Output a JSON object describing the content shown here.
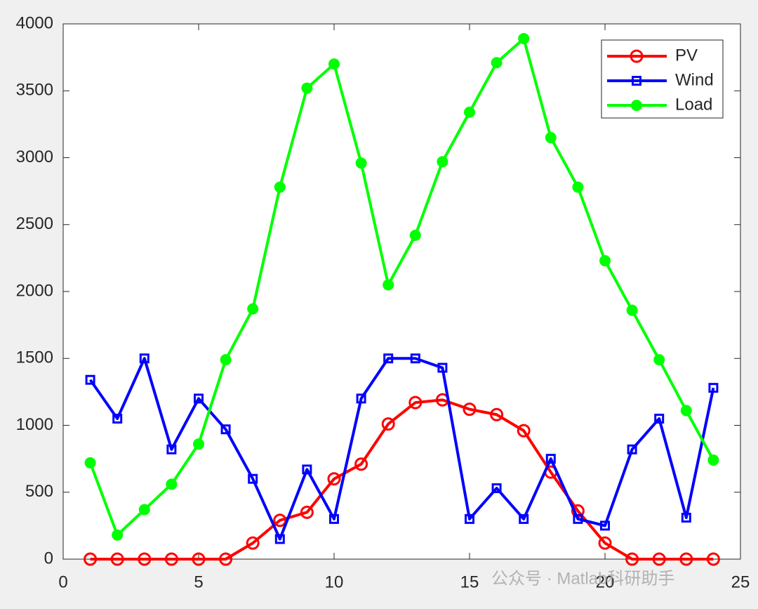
{
  "chart_data": {
    "type": "line",
    "x": [
      1,
      2,
      3,
      4,
      5,
      6,
      7,
      8,
      9,
      10,
      11,
      12,
      13,
      14,
      15,
      16,
      17,
      18,
      19,
      20,
      21,
      22,
      23,
      24
    ],
    "series": [
      {
        "name": "PV",
        "color": "#ff0000",
        "marker": "circle-open",
        "values": [
          0,
          0,
          0,
          0,
          0,
          0,
          120,
          290,
          350,
          600,
          710,
          1010,
          1170,
          1190,
          1120,
          1080,
          960,
          650,
          360,
          120,
          0,
          0,
          0,
          0
        ]
      },
      {
        "name": "Wind",
        "color": "#0000ff",
        "marker": "square-open",
        "values": [
          1340,
          1050,
          1500,
          820,
          1200,
          970,
          600,
          150,
          670,
          300,
          1200,
          1500,
          1500,
          1430,
          300,
          530,
          300,
          750,
          300,
          250,
          820,
          1050,
          310,
          1280
        ]
      },
      {
        "name": "Load",
        "color": "#00ff00",
        "marker": "circle-filled",
        "values": [
          720,
          180,
          370,
          560,
          860,
          1490,
          1870,
          2780,
          3520,
          3700,
          2960,
          2050,
          2420,
          2970,
          3340,
          3710,
          3890,
          3150,
          2780,
          2230,
          1860,
          1490,
          1110,
          740
        ]
      }
    ],
    "xlim": [
      0,
      25
    ],
    "xticks": [
      0,
      5,
      10,
      15,
      20,
      25
    ],
    "ylim": [
      0,
      4000
    ],
    "yticks": [
      0,
      500,
      1000,
      1500,
      2000,
      2500,
      3000,
      3500,
      4000
    ],
    "legend": "upper-right",
    "watermark": "公众号 · Matlab科研助手"
  }
}
